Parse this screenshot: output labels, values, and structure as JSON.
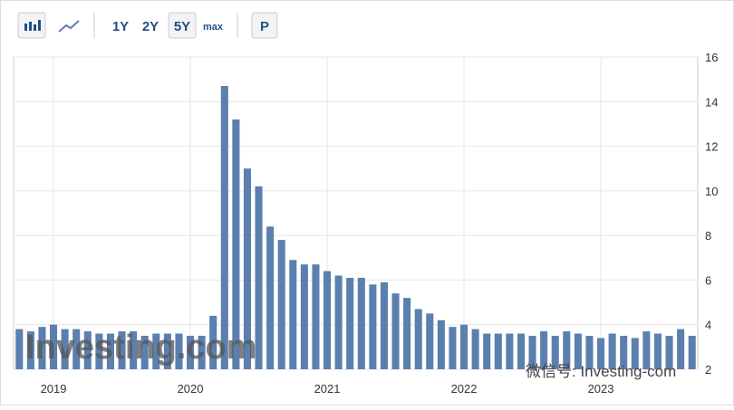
{
  "toolbar": {
    "buttons": [
      "1Y",
      "2Y",
      "5Y",
      "max",
      "P"
    ]
  },
  "watermark": "Investing.com",
  "wechat": "微信号: Investing-com",
  "chart_data": {
    "type": "bar",
    "categories": [
      null,
      null,
      null,
      "2019",
      null,
      null,
      null,
      null,
      null,
      null,
      null,
      null,
      null,
      null,
      null,
      "2020",
      null,
      null,
      null,
      null,
      null,
      null,
      null,
      null,
      null,
      null,
      null,
      "2021",
      null,
      null,
      null,
      null,
      null,
      null,
      null,
      null,
      null,
      null,
      null,
      "2022",
      null,
      null,
      null,
      null,
      null,
      null,
      null,
      null,
      null,
      null,
      null,
      "2023",
      null,
      null,
      null,
      null,
      null,
      null,
      null,
      null
    ],
    "values": [
      3.8,
      3.7,
      3.9,
      4.0,
      3.8,
      3.8,
      3.7,
      3.6,
      3.6,
      3.7,
      3.7,
      3.5,
      3.6,
      3.6,
      3.6,
      3.5,
      3.5,
      4.4,
      14.7,
      13.2,
      11.0,
      10.2,
      8.4,
      7.8,
      6.9,
      6.7,
      6.7,
      6.4,
      6.2,
      6.1,
      6.1,
      5.8,
      5.9,
      5.4,
      5.2,
      4.7,
      4.5,
      4.2,
      3.9,
      4.0,
      3.8,
      3.6,
      3.6,
      3.6,
      3.6,
      3.5,
      3.7,
      3.5,
      3.7,
      3.6,
      3.5,
      3.4,
      3.6,
      3.5,
      3.4,
      3.7,
      3.6,
      3.5,
      3.8,
      3.5
    ],
    "color": "#5b7fae",
    "ylim": [
      2,
      16
    ],
    "yticks": [
      2,
      4,
      6,
      8,
      10,
      12,
      14,
      16
    ],
    "grid": true
  }
}
